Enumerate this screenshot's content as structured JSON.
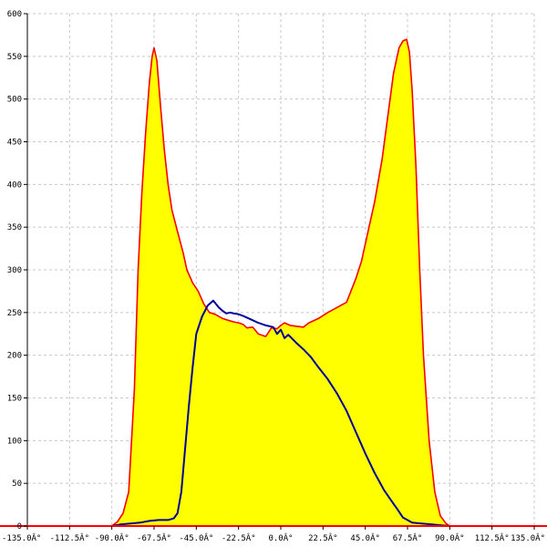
{
  "chart_data": {
    "type": "area",
    "title": "",
    "xlabel": "",
    "ylabel": "",
    "xlim": [
      -135,
      135
    ],
    "ylim": [
      0,
      600
    ],
    "grid": true,
    "x_ticks": [
      -135,
      -112.5,
      -90,
      -67.5,
      -45,
      -22.5,
      0,
      22.5,
      45,
      67.5,
      90,
      112.5,
      135
    ],
    "x_tick_labels": [
      "-135.0Â°",
      "-112.5Â°",
      "-90.0Â°",
      "-67.5Â°",
      "-45.0Â°",
      "-22.5Â°",
      "0.0Â°",
      "22.5Â°",
      "45.0Â°",
      "67.5Â°",
      "90.0Â°",
      "112.5Â°",
      "135.0Â°"
    ],
    "y_ticks": [
      0,
      50,
      100,
      150,
      200,
      250,
      300,
      350,
      400,
      450,
      500,
      550,
      600
    ],
    "y_tick_labels": [
      "0",
      "50",
      "100",
      "150",
      "200",
      "250",
      "300",
      "350",
      "400",
      "450",
      "500",
      "550",
      "600"
    ],
    "colors": {
      "fill": "#ffff00",
      "outline": "#ff0000",
      "line": "#00009c",
      "grid": "#c8c8c8",
      "axis": "#000000",
      "baseline": "#ff0000"
    },
    "series": [
      {
        "style": "filled-area",
        "color": "#ff0000",
        "fill": "#ffff00",
        "x": [
          -90,
          -87,
          -84,
          -81,
          -78,
          -76,
          -74,
          -72,
          -70,
          -68.5,
          -67.5,
          -66,
          -64,
          -62,
          -60,
          -58,
          -55,
          -52,
          -50,
          -47,
          -44,
          -41,
          -38,
          -35,
          -31,
          -28,
          -25,
          -22.5,
          -20,
          -18,
          -15,
          -12,
          -8,
          -5,
          -2,
          0,
          2,
          5,
          8,
          12,
          15,
          20,
          25,
          30,
          35,
          40,
          43,
          46,
          50,
          54,
          57,
          60,
          63,
          65,
          67,
          68.5,
          70,
          72,
          74,
          76,
          79,
          82,
          85,
          88,
          90
        ],
        "values": [
          0,
          5,
          15,
          40,
          160,
          300,
          390,
          460,
          520,
          550,
          560,
          545,
          490,
          440,
          400,
          370,
          345,
          320,
          300,
          285,
          275,
          260,
          250,
          248,
          243,
          241,
          239,
          238,
          236,
          232,
          233,
          225,
          222,
          232,
          231,
          235,
          238,
          235,
          234,
          233,
          238,
          243,
          250,
          256,
          262,
          290,
          310,
          340,
          380,
          430,
          480,
          530,
          560,
          568,
          570,
          555,
          510,
          420,
          300,
          200,
          100,
          40,
          12,
          3,
          0
        ]
      },
      {
        "style": "line",
        "color": "#00009c",
        "x": [
          -90,
          -85,
          -80,
          -75,
          -70,
          -65,
          -60,
          -57,
          -55,
          -53,
          -51,
          -49,
          -47,
          -45,
          -42,
          -39,
          -36,
          -33,
          -31,
          -29,
          -27,
          -25,
          -22.5,
          -20,
          -16,
          -12,
          -8,
          -4,
          -2,
          0,
          2,
          4,
          8,
          12,
          16,
          20,
          25,
          30,
          35,
          40,
          45,
          50,
          55,
          60,
          62,
          65,
          70,
          75,
          80,
          85,
          90
        ],
        "values": [
          0,
          2,
          3,
          4,
          6,
          7,
          7,
          9,
          15,
          40,
          90,
          140,
          185,
          225,
          245,
          258,
          264,
          256,
          252,
          249,
          250,
          249,
          248,
          246,
          242,
          238,
          235,
          233,
          225,
          230,
          220,
          224,
          215,
          207,
          198,
          186,
          172,
          155,
          135,
          110,
          85,
          62,
          42,
          26,
          20,
          10,
          4,
          3,
          2,
          1,
          0
        ]
      }
    ]
  }
}
